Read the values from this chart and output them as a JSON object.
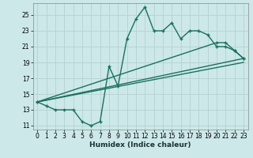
{
  "bg_color": "#cce8e8",
  "grid_color": "#b8d4d4",
  "line_color": "#1a7060",
  "xlabel": "Humidex (Indice chaleur)",
  "xlim": [
    -0.5,
    23.5
  ],
  "ylim": [
    10.5,
    26.5
  ],
  "xticks": [
    0,
    1,
    2,
    3,
    4,
    5,
    6,
    7,
    8,
    9,
    10,
    11,
    12,
    13,
    14,
    15,
    16,
    17,
    18,
    19,
    20,
    21,
    22,
    23
  ],
  "yticks": [
    11,
    13,
    15,
    17,
    19,
    21,
    23,
    25
  ],
  "main_x": [
    0,
    1,
    2,
    3,
    4,
    5,
    6,
    7,
    8,
    9,
    10,
    11,
    12,
    13,
    14,
    15,
    16,
    17,
    18,
    19,
    20,
    21,
    22,
    23
  ],
  "main_y": [
    14.0,
    13.5,
    13.0,
    13.0,
    13.0,
    11.5,
    11.0,
    11.5,
    18.5,
    16.0,
    22.0,
    24.5,
    26.0,
    23.0,
    23.0,
    24.0,
    22.0,
    23.0,
    23.0,
    22.5,
    21.0,
    21.0,
    20.5,
    19.5
  ],
  "upper_line_x": [
    0,
    20,
    21,
    22,
    23
  ],
  "upper_line_y": [
    14.0,
    21.5,
    21.5,
    20.5,
    19.5
  ],
  "mid_line_x": [
    0,
    23
  ],
  "mid_line_y": [
    14.0,
    19.5
  ],
  "low_line_x": [
    0,
    23
  ],
  "low_line_y": [
    14.0,
    19.0
  ]
}
